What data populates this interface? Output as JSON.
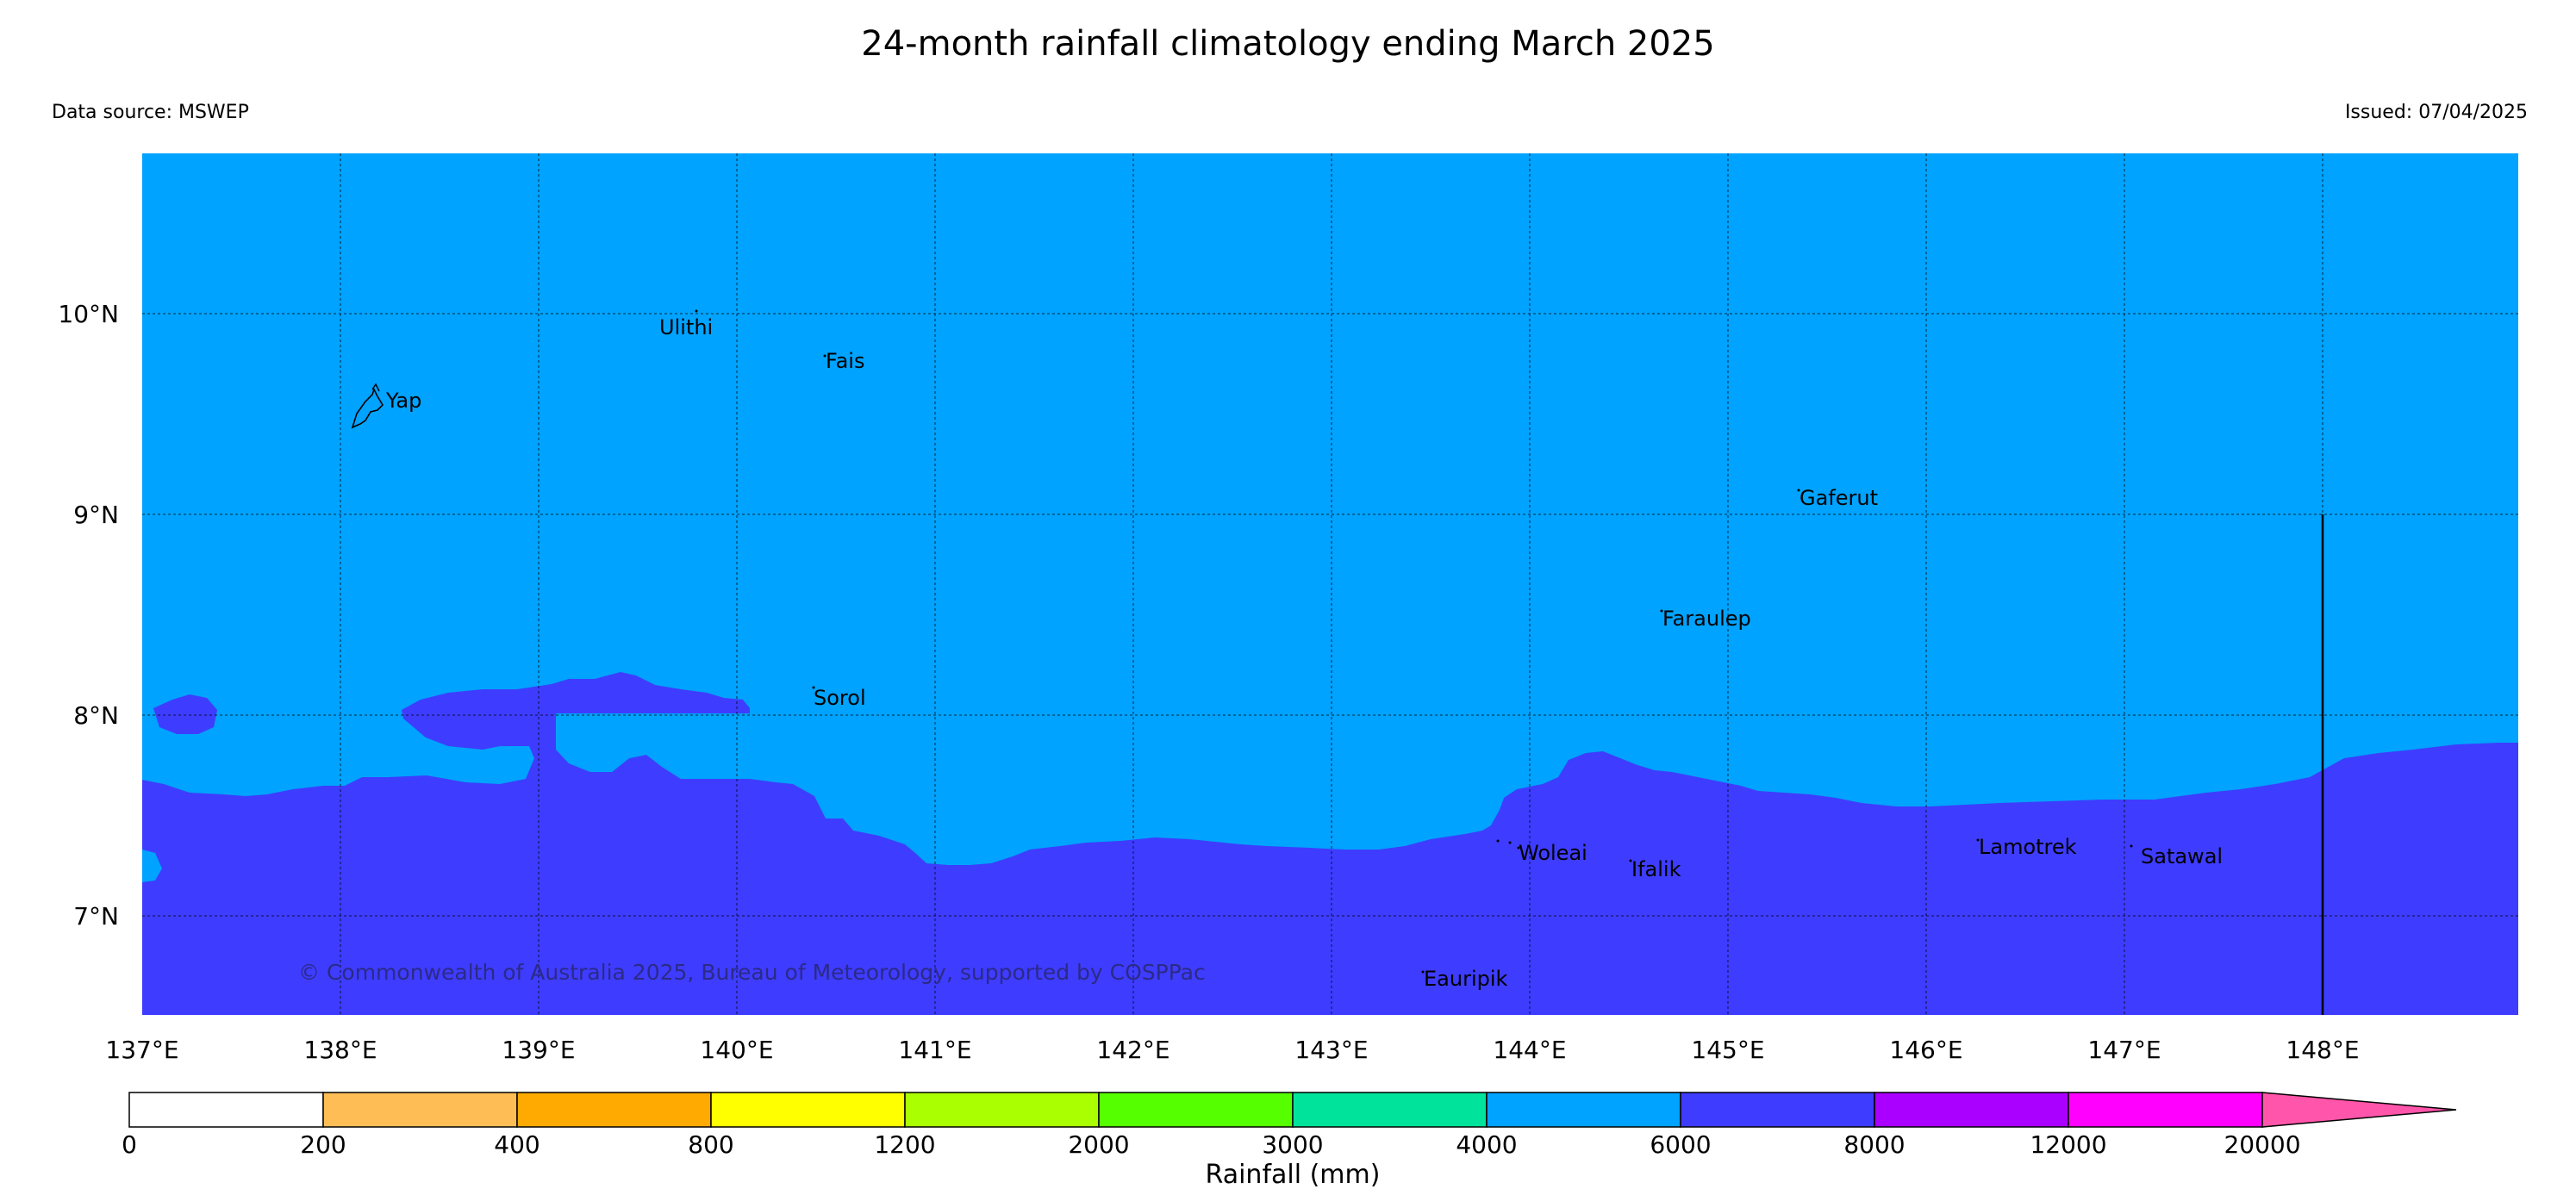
{
  "header": {
    "title": "24-month rainfall climatology ending March 2025",
    "source": "Data source: MSWEP",
    "issued": "Issued: 07/04/2025"
  },
  "map": {
    "lat_labels": [
      "10°N",
      "9°N",
      "8°N",
      "7°N"
    ],
    "lon_labels": [
      "137°E",
      "138°E",
      "139°E",
      "140°E",
      "141°E",
      "142°E",
      "143°E",
      "144°E",
      "145°E",
      "146°E",
      "147°E",
      "148°E"
    ],
    "islands": [
      "Yap",
      "Ulithi",
      "Fais",
      "Gaferut",
      "Faraulep",
      "Sorol",
      "Woleai",
      "Ifalik",
      "Lamotrek",
      "Satawal",
      "Eauripik"
    ],
    "copyright": "© Commonwealth of Australia 2025, Bureau of Meteorology, supported by COSPPac",
    "colors": {
      "band_4000_6000": "#00a3ff",
      "band_6000_8000": "#3e3cff"
    }
  },
  "colorbar": {
    "title": "Rainfall (mm)",
    "ticks": [
      "0",
      "200",
      "400",
      "800",
      "1200",
      "2000",
      "3000",
      "4000",
      "6000",
      "8000",
      "12000",
      "20000"
    ],
    "colors": [
      "#ffffff",
      "#ffbe55",
      "#ffaa00",
      "#ffff00",
      "#aaff00",
      "#55ff00",
      "#00e39a",
      "#00a3ff",
      "#3e3cff",
      "#aa00ff",
      "#ff00ff",
      "#ff55aa"
    ]
  }
}
